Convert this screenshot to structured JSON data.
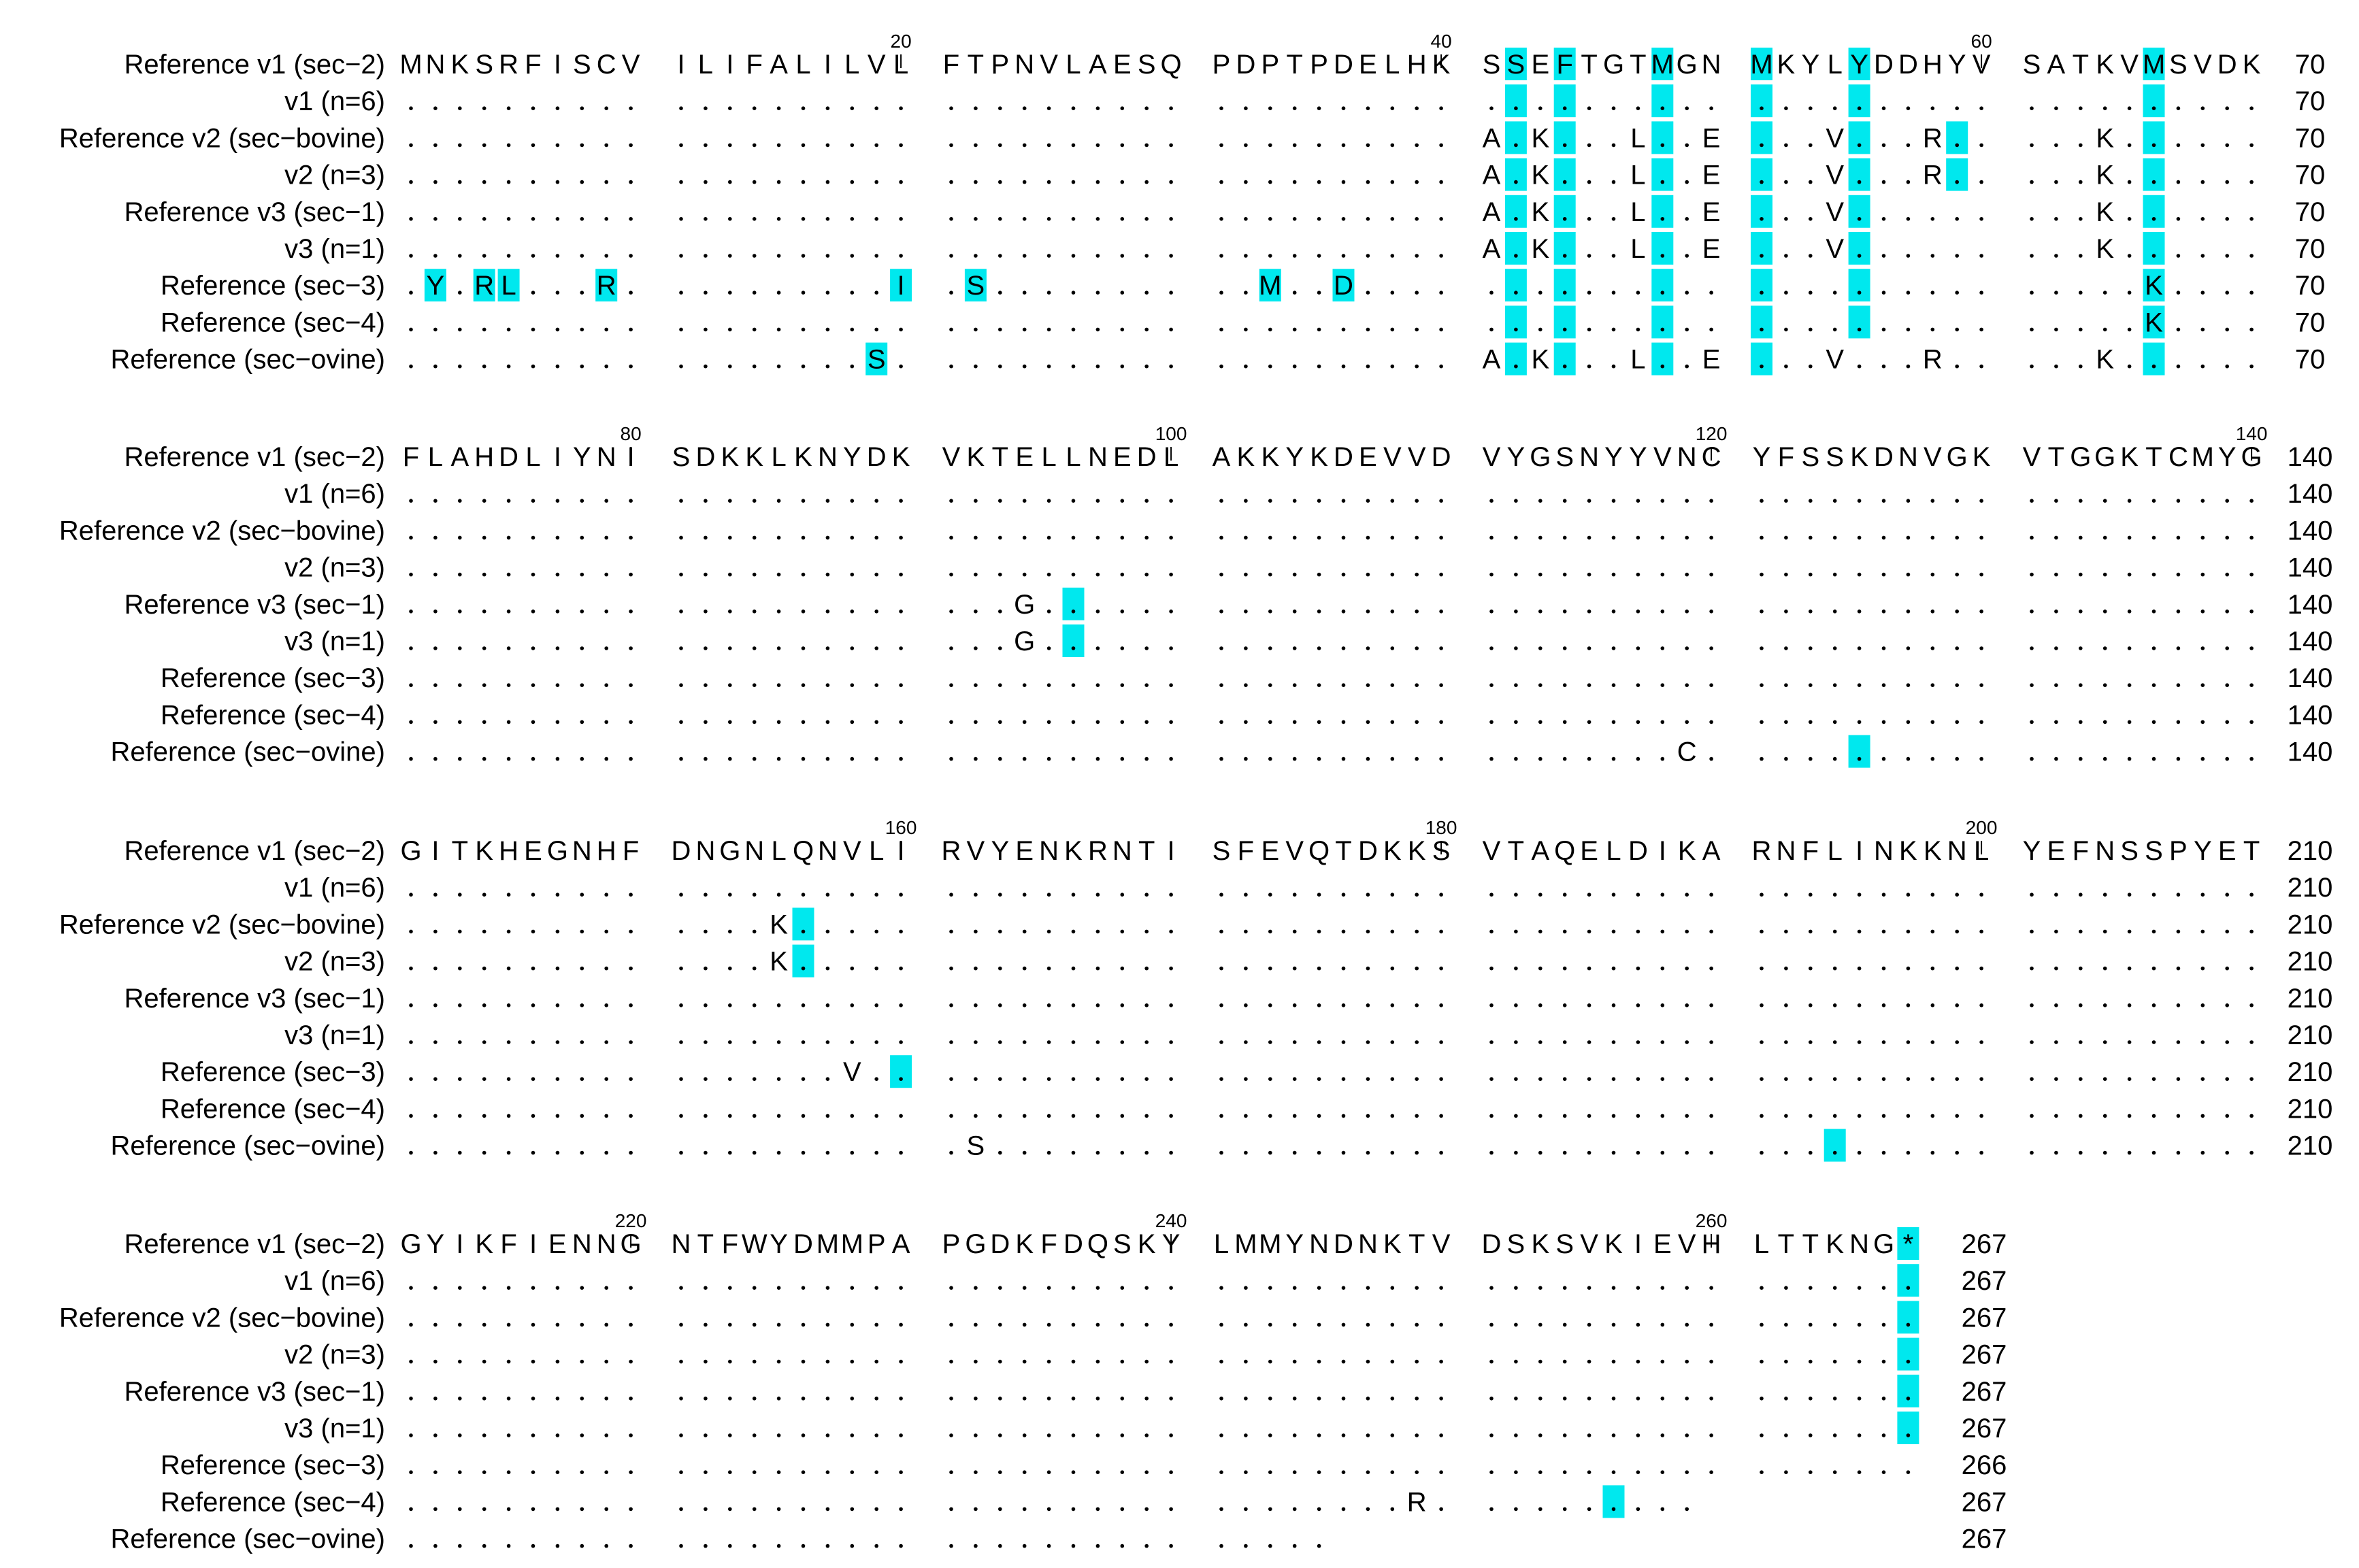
{
  "highlight_color": "#00e8ee",
  "text_color": "#000000",
  "block_width": 70,
  "group_size": 10,
  "sequences": [
    {
      "label": "Reference v1 (sec−2)",
      "seq": "MNKSRFISCVILIFALILVLFTPNVLAESQPDPTPDELHKSSEFTGTMGNMKYLYDDHYVSATKVMSVDKFLAHDLIYNISDKKLKNYDKVKTELLNEDLAKKYKDEVVDVYGSNYYVNCYFSSKDNVGKVTGGKTCMYGGITKHEGNHFDNGNLQNVLIRVYENKRNTISFEVQTDKKSVTAQELDIKARNFLINKKNLYEFNSSPYETGYIKFIENNGNTFWYDMMPAPGDKFDQSKYLMMYNDNKTVDSKSVKIEVHLTTKNG*"
    },
    {
      "label": "v1 (n=6)",
      "seq": "..........................................................................................................................................................................................................................................................................."
    },
    {
      "label": "Reference v2 (sec−bovine)",
      "seq": "........................................A.K...L..E...V...R.....K..........................................................................................K.................................................................................................................."
    },
    {
      "label": "v2 (n=3)",
      "seq": "........................................A.K...L..E...V...R.....K..........................................................................................K.................................................................................................................."
    },
    {
      "label": "Reference v3 (sec−1)",
      "seq": "........................................A.K...L..E...V.........K.............................G............................................................................................................................................................................."
    },
    {
      "label": "v3 (n=1)",
      "seq": "........................................A.K...L..E...V.........K.............................G............................................................................................................................................................................."
    },
    {
      "label": "Reference (sec−3)",
      "seq": ".Y.RL...R..........I.S..........M..D.............................K...........................................................................................V..............................................................................................................-"
    },
    {
      "label": "Reference (sec−4)",
      "seq": ".................................................................K......................................................................................................................................................................................R.........."
    },
    {
      "label": "Reference (sec−ovine)",
      "seq": "..................S.....................A.K...L..E...V...R.....K......................................................C..........................................S..................................................................................."
    }
  ],
  "highlight_columns": [
    42,
    44,
    48,
    51,
    55,
    66,
    267
  ],
  "highlight_cells": [
    {
      "row": 2,
      "col": 59
    },
    {
      "row": 3,
      "col": 59
    },
    {
      "row": 6,
      "col": 2
    },
    {
      "row": 6,
      "col": 4
    },
    {
      "row": 6,
      "col": 5
    },
    {
      "row": 6,
      "col": 9
    },
    {
      "row": 6,
      "col": 20
    },
    {
      "row": 6,
      "col": 22
    },
    {
      "row": 6,
      "col": 33
    },
    {
      "row": 6,
      "col": 36
    },
    {
      "row": 8,
      "col": 19
    },
    {
      "row": 4,
      "col": 96
    },
    {
      "row": 5,
      "col": 96
    },
    {
      "row": 8,
      "col": 125
    },
    {
      "row": 2,
      "col": 156
    },
    {
      "row": 3,
      "col": 156
    },
    {
      "row": 6,
      "col": 160
    },
    {
      "row": 8,
      "col": 194
    },
    {
      "row": 7,
      "col": 256
    }
  ],
  "column_exclusions": [
    {
      "col": 55,
      "row": 8
    },
    {
      "col": 267,
      "row": 6
    }
  ],
  "blocks": [
    {
      "start": 1,
      "totals": [
        "70",
        "70",
        "70",
        "70",
        "70",
        "70",
        "70",
        "70",
        "70"
      ],
      "ticks": [
        {
          "pos": 20,
          "label": "20"
        },
        {
          "pos": 40,
          "label": "40"
        },
        {
          "pos": 60,
          "label": "60"
        }
      ]
    },
    {
      "start": 71,
      "totals": [
        "140",
        "140",
        "140",
        "140",
        "140",
        "140",
        "140",
        "140",
        "140"
      ],
      "ticks": [
        {
          "pos": 80,
          "label": "80"
        },
        {
          "pos": 100,
          "label": "100"
        },
        {
          "pos": 120,
          "label": "120"
        },
        {
          "pos": 140,
          "label": "140"
        }
      ]
    },
    {
      "start": 141,
      "totals": [
        "210",
        "210",
        "210",
        "210",
        "210",
        "210",
        "210",
        "210",
        "210"
      ],
      "ticks": [
        {
          "pos": 160,
          "label": "160"
        },
        {
          "pos": 180,
          "label": "180"
        },
        {
          "pos": 200,
          "label": "200"
        }
      ]
    },
    {
      "start": 211,
      "totals": [
        "267",
        "267",
        "267",
        "267",
        "267",
        "267",
        "266",
        "267",
        "267"
      ],
      "ticks": [
        {
          "pos": 220,
          "label": "220"
        },
        {
          "pos": 240,
          "label": "240"
        },
        {
          "pos": 260,
          "label": "260"
        }
      ]
    }
  ]
}
